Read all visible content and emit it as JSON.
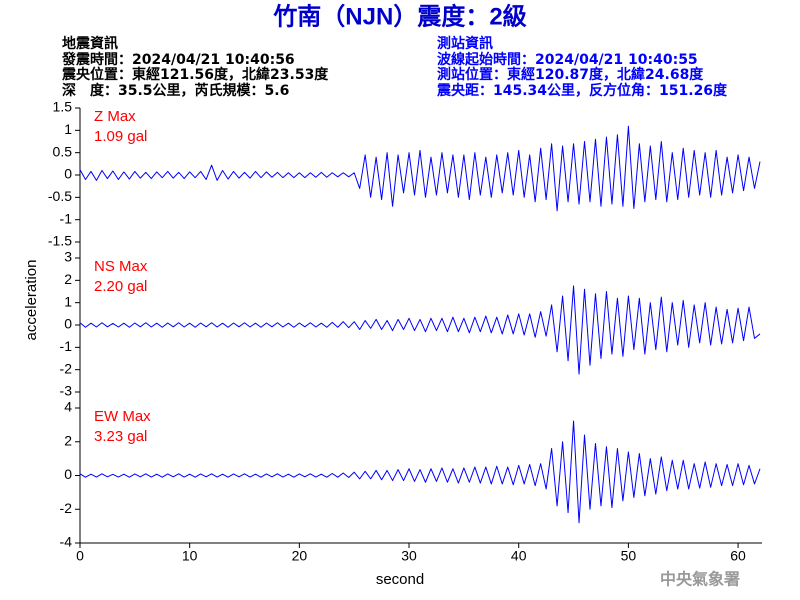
{
  "header": {
    "title": "竹南（NJN）震度：2級",
    "left": [
      "地震資訊",
      "發震時間：2024/04/21 10:40:56",
      "震央位置：東經121.56度，北緯23.53度",
      "深　度：35.5公里，芮氏規模：5.6"
    ],
    "right": [
      "測站資訊",
      "波線起始時間：2024/04/21 10:40:55",
      "測站位置：東經120.87度，北緯24.68度",
      "震央距：145.34公里，反方位角：151.26度"
    ],
    "credit": "中央氣象署"
  },
  "chart_data": {
    "type": "line",
    "xlabel": "second",
    "ylabel": "acceleration",
    "color": "#0000ff",
    "annotation_color": "#ff0000",
    "xlim": [
      0,
      62
    ],
    "xticks": [
      0,
      10,
      20,
      30,
      40,
      50,
      60
    ],
    "x": [
      0,
      0.5,
      1,
      1.5,
      2,
      2.5,
      3,
      3.5,
      4,
      4.5,
      5,
      5.5,
      6,
      6.5,
      7,
      7.5,
      8,
      8.5,
      9,
      9.5,
      10,
      10.5,
      11,
      11.5,
      12,
      12.5,
      13,
      13.5,
      14,
      14.5,
      15,
      15.5,
      16,
      16.5,
      17,
      17.5,
      18,
      18.5,
      19,
      19.5,
      20,
      20.5,
      21,
      21.5,
      22,
      22.5,
      23,
      23.5,
      24,
      24.5,
      25,
      25.5,
      26,
      26.5,
      27,
      27.5,
      28,
      28.5,
      29,
      29.5,
      30,
      30.5,
      31,
      31.5,
      32,
      32.5,
      33,
      33.5,
      34,
      34.5,
      35,
      35.5,
      36,
      36.5,
      37,
      37.5,
      38,
      38.5,
      39,
      39.5,
      40,
      40.5,
      41,
      41.5,
      42,
      42.5,
      43,
      43.5,
      44,
      44.5,
      45,
      45.5,
      46,
      46.5,
      47,
      47.5,
      48,
      48.5,
      49,
      49.5,
      50,
      50.5,
      51,
      51.5,
      52,
      52.5,
      53,
      53.5,
      54,
      54.5,
      55,
      55.5,
      56,
      56.5,
      57,
      57.5,
      58,
      58.5,
      59,
      59.5,
      60,
      60.5,
      61,
      61.5,
      62
    ],
    "panels": [
      {
        "annotation": [
          "Z Max",
          "1.09 gal"
        ],
        "ylim": [
          -1.5,
          1.5
        ],
        "yticks": [
          -1.5,
          -1,
          -0.5,
          0,
          0.5,
          1,
          1.5
        ],
        "values": [
          0.12,
          -0.1,
          0.08,
          -0.12,
          0.1,
          -0.08,
          0.09,
          -0.1,
          0.07,
          -0.09,
          0.08,
          -0.07,
          0.06,
          -0.08,
          0.07,
          -0.06,
          0.08,
          -0.07,
          0.06,
          -0.08,
          0.07,
          -0.06,
          0.08,
          -0.1,
          0.22,
          -0.12,
          0.1,
          -0.09,
          0.08,
          -0.07,
          0.06,
          -0.07,
          0.08,
          -0.06,
          0.07,
          -0.05,
          0.06,
          -0.06,
          0.05,
          -0.06,
          0.05,
          -0.06,
          0.05,
          -0.05,
          0.06,
          -0.05,
          0.05,
          -0.04,
          0.05,
          -0.04,
          0.05,
          -0.3,
          0.45,
          -0.5,
          0.4,
          -0.55,
          0.5,
          -0.7,
          0.45,
          -0.4,
          0.5,
          -0.45,
          0.55,
          -0.5,
          0.4,
          -0.45,
          0.5,
          -0.4,
          0.45,
          -0.5,
          0.45,
          -0.55,
          0.5,
          -0.45,
          0.4,
          -0.5,
          0.45,
          -0.4,
          0.5,
          -0.45,
          0.55,
          -0.5,
          0.45,
          -0.6,
          0.6,
          -0.55,
          0.7,
          -0.8,
          0.65,
          -0.6,
          0.7,
          -0.65,
          0.75,
          -0.6,
          0.8,
          -0.7,
          0.85,
          -0.65,
          0.9,
          -0.7,
          1.09,
          -0.75,
          0.7,
          -0.6,
          0.65,
          -0.55,
          0.75,
          -0.6,
          0.5,
          -0.55,
          0.6,
          -0.5,
          0.55,
          -0.45,
          0.5,
          -0.5,
          0.55,
          -0.45,
          0.4,
          -0.4,
          0.45,
          -0.35,
          0.4,
          -0.3,
          0.3
        ]
      },
      {
        "annotation": [
          "NS Max",
          "2.20 gal"
        ],
        "ylim": [
          -3,
          3
        ],
        "yticks": [
          -3,
          -2,
          -1,
          0,
          1,
          2,
          3
        ],
        "values": [
          0.1,
          -0.1,
          0.08,
          -0.09,
          0.1,
          -0.08,
          0.07,
          -0.09,
          0.08,
          -0.1,
          0.09,
          -0.08,
          0.1,
          -0.09,
          0.08,
          -0.1,
          0.09,
          -0.08,
          0.1,
          -0.09,
          0.08,
          -0.1,
          0.09,
          -0.08,
          0.1,
          -0.09,
          0.08,
          -0.1,
          0.09,
          -0.08,
          0.1,
          -0.09,
          0.08,
          -0.1,
          0.09,
          -0.08,
          0.1,
          -0.09,
          0.08,
          -0.1,
          0.09,
          -0.08,
          0.1,
          -0.09,
          0.08,
          -0.1,
          0.12,
          -0.1,
          0.15,
          -0.12,
          0.15,
          -0.2,
          0.2,
          -0.15,
          0.25,
          -0.2,
          0.2,
          -0.25,
          0.25,
          -0.2,
          0.3,
          -0.25,
          0.25,
          -0.3,
          0.3,
          -0.25,
          0.3,
          -0.3,
          0.35,
          -0.3,
          0.3,
          -0.35,
          0.35,
          -0.3,
          0.4,
          -0.35,
          0.35,
          -0.4,
          0.45,
          -0.4,
          0.5,
          -0.45,
          0.5,
          -0.55,
          0.6,
          -0.5,
          0.9,
          -1.2,
          1.3,
          -1.6,
          1.75,
          -2.2,
          1.6,
          -1.8,
          1.4,
          -1.5,
          1.5,
          -1.3,
          1.2,
          -1.4,
          1.3,
          -1.1,
          1.2,
          -1.3,
          1.0,
          -1.1,
          1.25,
          -1.2,
          1.0,
          -0.9,
          1.1,
          -1.0,
          0.9,
          -0.8,
          1.0,
          -0.9,
          0.8,
          -0.85,
          0.7,
          -0.8,
          0.75,
          -0.7,
          0.8,
          -0.6,
          -0.4
        ]
      },
      {
        "annotation": [
          "EW Max",
          "3.23 gal"
        ],
        "ylim": [
          -4,
          4
        ],
        "yticks": [
          -4,
          -2,
          0,
          2,
          4
        ],
        "values": [
          0.1,
          -0.1,
          0.08,
          -0.09,
          0.1,
          -0.08,
          0.07,
          -0.09,
          0.08,
          -0.1,
          0.09,
          -0.08,
          0.1,
          -0.09,
          0.08,
          -0.1,
          0.09,
          -0.08,
          0.1,
          -0.09,
          0.08,
          -0.1,
          0.09,
          -0.08,
          0.1,
          -0.09,
          0.08,
          -0.1,
          0.09,
          -0.08,
          0.1,
          -0.09,
          0.08,
          -0.1,
          0.09,
          -0.08,
          0.1,
          -0.09,
          0.08,
          -0.1,
          0.09,
          -0.08,
          0.1,
          -0.09,
          0.08,
          -0.1,
          0.12,
          -0.1,
          0.15,
          -0.12,
          0.2,
          -0.2,
          0.25,
          -0.2,
          0.3,
          -0.25,
          0.3,
          -0.3,
          0.35,
          -0.3,
          0.4,
          -0.35,
          0.35,
          -0.4,
          0.4,
          -0.35,
          0.45,
          -0.4,
          0.4,
          -0.45,
          0.45,
          -0.4,
          0.5,
          -0.45,
          0.5,
          -0.5,
          0.55,
          -0.5,
          0.5,
          -0.55,
          0.6,
          -0.5,
          0.65,
          -0.6,
          0.7,
          -0.8,
          1.6,
          -1.8,
          2.0,
          -2.2,
          3.23,
          -2.8,
          2.4,
          -2.0,
          1.9,
          -1.8,
          1.7,
          -1.9,
          1.6,
          -1.5,
          1.4,
          -1.3,
          1.3,
          -1.2,
          1.0,
          -1.1,
          1.1,
          -0.9,
          0.9,
          -0.8,
          0.9,
          -0.8,
          0.7,
          -0.75,
          0.8,
          -0.7,
          0.7,
          -0.6,
          0.65,
          -0.6,
          0.7,
          -0.55,
          0.6,
          -0.5,
          0.4
        ]
      }
    ]
  }
}
